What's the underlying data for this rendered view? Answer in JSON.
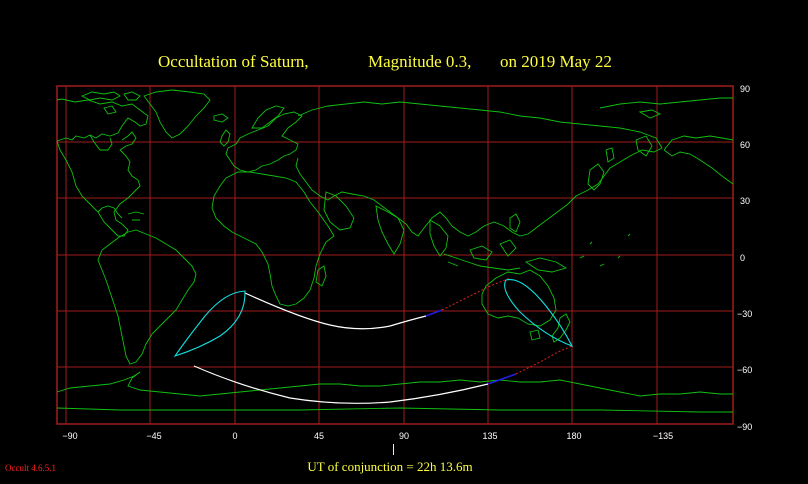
{
  "title": {
    "object": "Occultation  of  Saturn,",
    "magnitude": "Magnitude 0.3,",
    "date": "on  2019 May 22"
  },
  "footer": {
    "ut_label": "UT of conjunction = 22h 13.6m",
    "version": "Occult 4.6.5.1"
  },
  "map": {
    "projection": "equirectangular",
    "lon_range": [
      -95,
      165
    ],
    "lat_range": [
      -90,
      90
    ],
    "lon_ticks": [
      "−90",
      "−45",
      "0",
      "45",
      "90",
      "135",
      "180",
      "−135"
    ],
    "lat_ticks": [
      "90",
      "60",
      "30",
      "0",
      "−30",
      "−60",
      "−90"
    ],
    "colors": {
      "background": "#000000",
      "grid": "#a01c1c",
      "coastline": "#10c010",
      "path": "#ffffff",
      "limit": "#10e0e0",
      "path_ext": "#2020e0",
      "path_dashed": "#e02020",
      "title": "#ffff40"
    }
  }
}
